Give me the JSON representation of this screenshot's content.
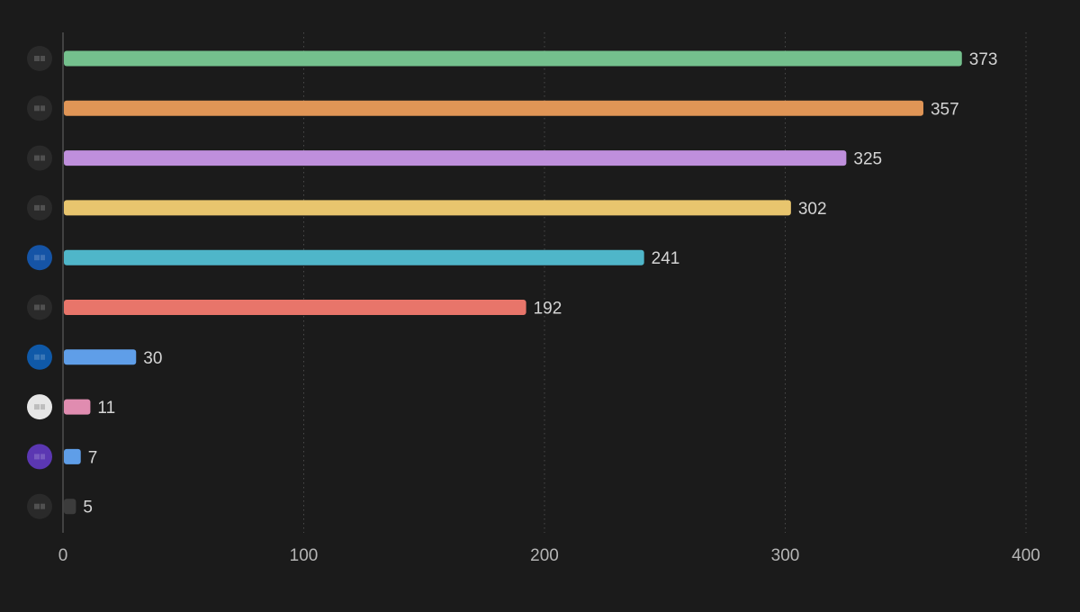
{
  "chart_data": {
    "type": "bar",
    "orientation": "horizontal",
    "values": [
      373,
      357,
      325,
      302,
      241,
      192,
      30,
      11,
      7,
      5
    ],
    "bar_colors": [
      "#74c08d",
      "#e09556",
      "#bf8fdc",
      "#e8c56e",
      "#4fb6c9",
      "#e8756a",
      "#5f9ee8",
      "#e08cb0",
      "#5f9ee8",
      "#3c3c3c"
    ],
    "avatar_colors": [
      "#2a2a2a",
      "#2a2a2a",
      "#2a2a2a",
      "#2a2a2a",
      "#1554a6",
      "#2a2a2a",
      "#0f59a8",
      "#e6e6e6",
      "#5b37b2",
      "#2a2a2a"
    ],
    "xlim": [
      0,
      400
    ],
    "xticks": [
      0,
      100,
      200,
      300,
      400
    ],
    "x_tick_labels": [
      "0",
      "100",
      "200",
      "300",
      "400"
    ],
    "grid": "vertical-dotted",
    "title": "",
    "xlabel": "",
    "ylabel": ""
  },
  "theme": {
    "background": "#1b1b1b",
    "label_color": "#d4d4d4",
    "tick_color": "#b5b5b5",
    "grid_color": "#4a4a4a",
    "axis_color": "#6a6a6a"
  }
}
